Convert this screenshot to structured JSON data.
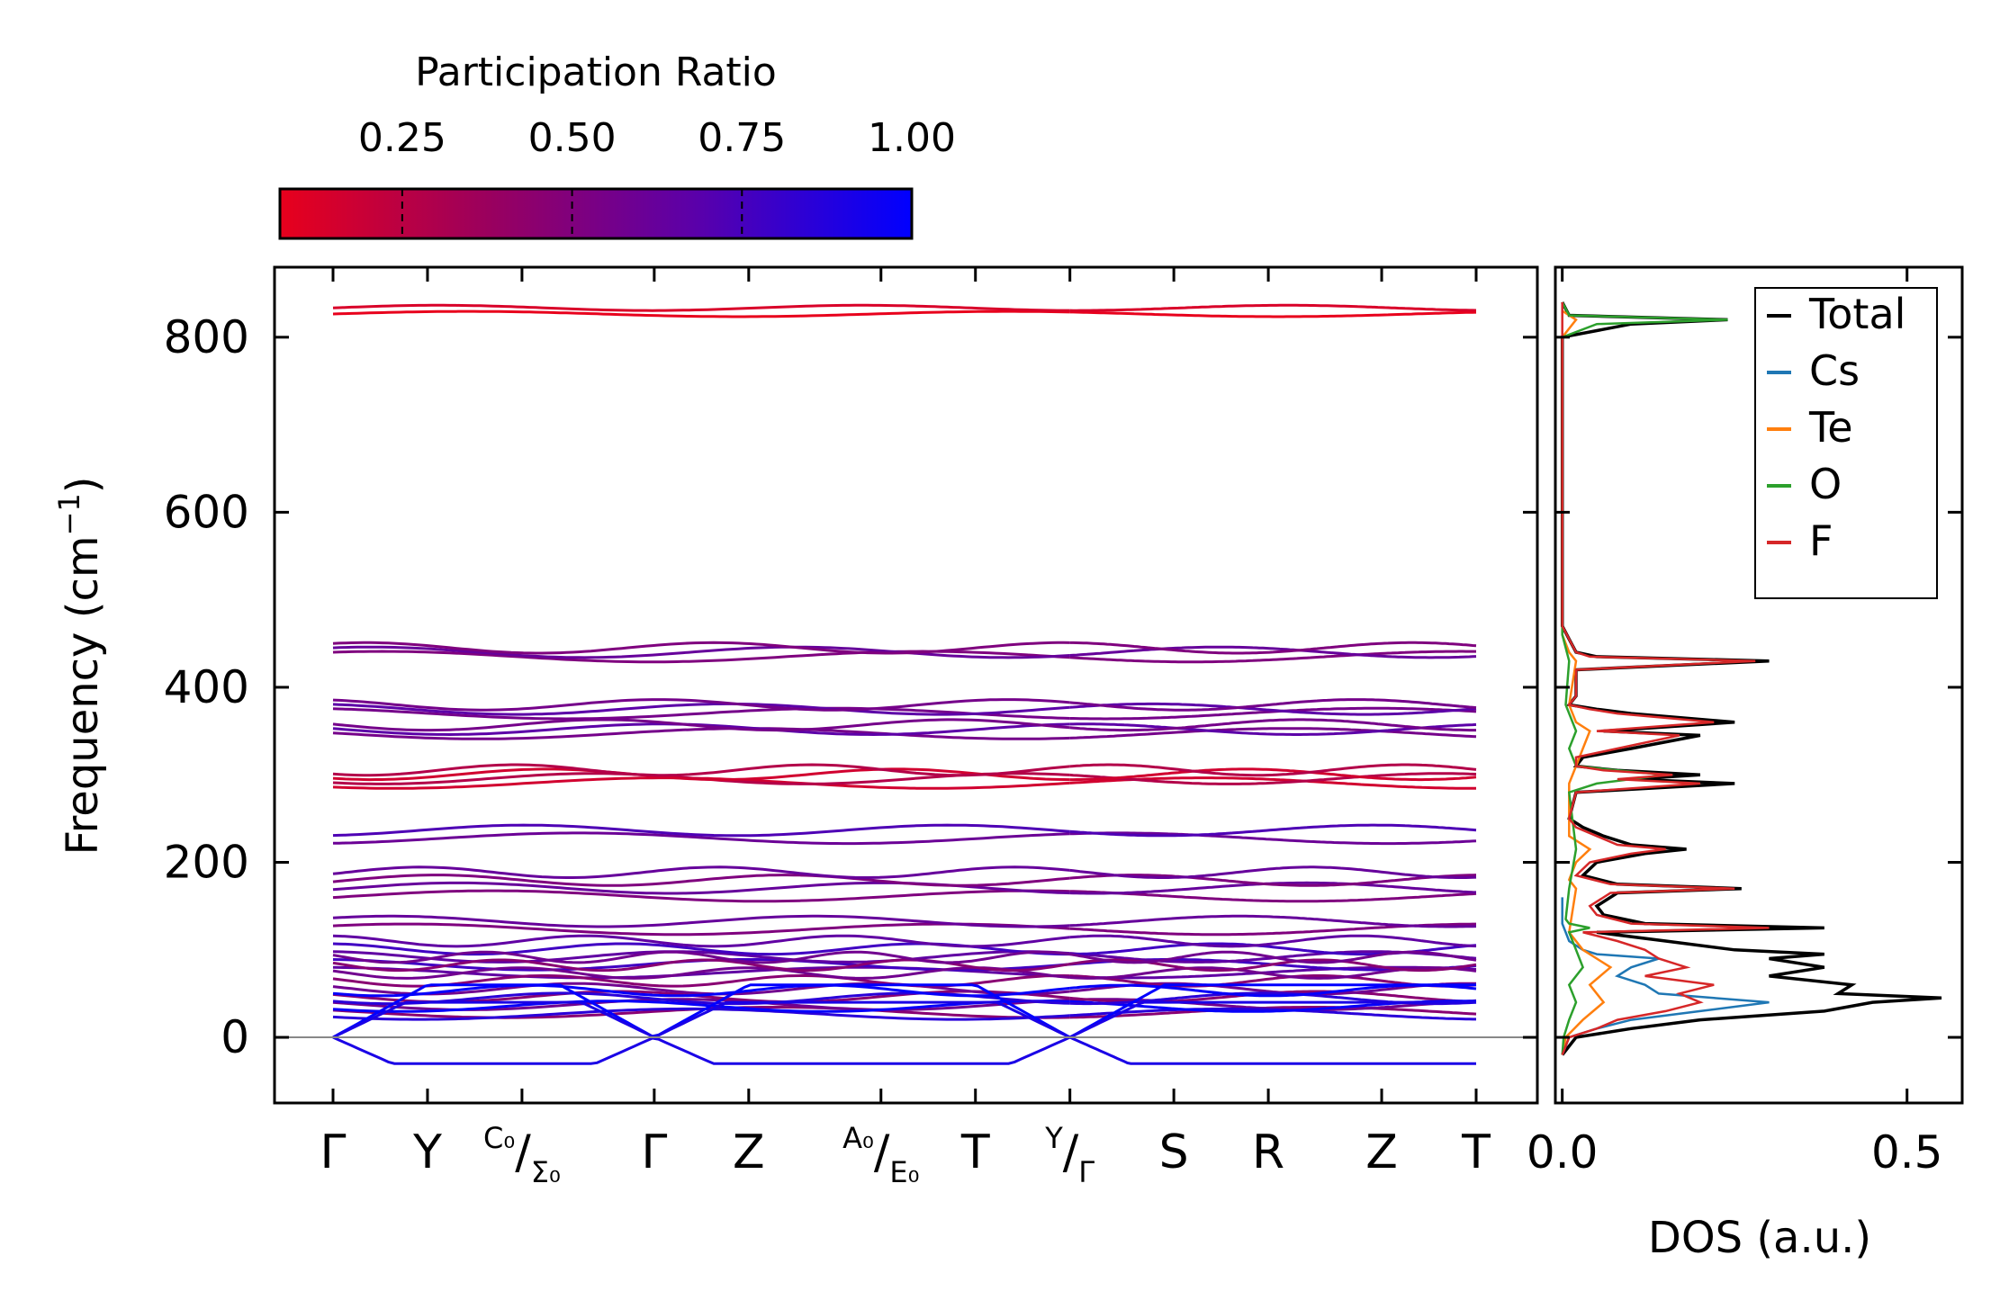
{
  "chart_data": [
    {
      "type": "line",
      "panel": "phonon-band-structure",
      "ylabel": "Frequency (cm",
      "ylabel_sup": "−1",
      "ylabel_close": ")",
      "ylim": [
        -75,
        880
      ],
      "yticks": [
        0,
        200,
        400,
        600,
        800
      ],
      "ytick_labels": [
        "0",
        "200",
        "400",
        "600",
        "800"
      ],
      "kpoints": [
        0,
        1,
        2,
        3.4,
        4.4,
        5.8,
        6.8,
        7.8,
        8.9,
        9.9,
        11.1,
        12.1
      ],
      "segment_breaks": [
        7.8
      ],
      "xtick_labels": [
        {
          "pos": 0,
          "text": "Γ"
        },
        {
          "pos": 1,
          "text": "Y"
        },
        {
          "pos": 2,
          "sup": "C₀",
          "slash": "/",
          "sub": "Σ₀"
        },
        {
          "pos": 3.4,
          "text": "Γ"
        },
        {
          "pos": 4.4,
          "text": "Z"
        },
        {
          "pos": 5.8,
          "sup": "A₀",
          "slash": "/",
          "sub": "E₀"
        },
        {
          "pos": 6.8,
          "text": "T"
        },
        {
          "pos": 7.8,
          "sup": "Y",
          "slash": "/",
          "sub": "Γ"
        },
        {
          "pos": 8.9,
          "text": "S"
        },
        {
          "pos": 9.9,
          "text": "R"
        },
        {
          "pos": 11.1,
          "text": "Z"
        },
        {
          "pos": 12.1,
          "text": "T"
        }
      ],
      "band_groups": [
        {
          "freq": 830,
          "pr": 0.05,
          "n": 2
        },
        {
          "freq": 440,
          "pr": 0.55,
          "n": 3
        },
        {
          "freq": 375,
          "pr": 0.6,
          "n": 3
        },
        {
          "freq": 352,
          "pr": 0.6,
          "n": 3
        },
        {
          "freq": 298,
          "pr": 0.2,
          "n": 4
        },
        {
          "freq": 232,
          "pr": 0.65,
          "n": 2
        },
        {
          "freq": 175,
          "pr": 0.55,
          "n": 4
        },
        {
          "freq": 128,
          "pr": 0.55,
          "n": 2
        },
        {
          "freq": 92,
          "pr": 0.7,
          "n": 5
        },
        {
          "freq": 60,
          "pr": 0.5,
          "n": 8
        },
        {
          "freq": 40,
          "pr": 0.9,
          "n": 4
        },
        {
          "freq": 0,
          "pr": 0.95,
          "n": 3
        }
      ],
      "zero_line": 0,
      "colorbar": {
        "title": "Participation Ratio",
        "ticks": [
          0.25,
          0.5,
          0.75,
          1.0
        ],
        "tick_labels": [
          "0.25",
          "0.50",
          "0.75",
          "1.00"
        ],
        "range": [
          0.07,
          1.0
        ],
        "colors": [
          "#e8001c",
          "#9a005e",
          "#5a00aa",
          "#0000ff"
        ]
      }
    },
    {
      "type": "line",
      "panel": "density-of-states",
      "xlabel": "DOS (a.u.)",
      "xlim": [
        -0.01,
        0.58
      ],
      "xticks": [
        0.0,
        0.5
      ],
      "xtick_labels": [
        "0.0",
        "0.5"
      ],
      "ylim": [
        -75,
        880
      ],
      "series": [
        {
          "name": "Total",
          "color": "#000000",
          "freq": [
            -20,
            0,
            10,
            20,
            30,
            40,
            45,
            50,
            60,
            70,
            80,
            90,
            95,
            100,
            110,
            120,
            125,
            130,
            140,
            150,
            165,
            170,
            175,
            185,
            200,
            210,
            215,
            220,
            230,
            240,
            250,
            280,
            290,
            295,
            300,
            305,
            310,
            320,
            330,
            345,
            350,
            360,
            370,
            375,
            380,
            390,
            420,
            430,
            435,
            440,
            455,
            470,
            800,
            815,
            820,
            825,
            840
          ],
          "values": [
            0,
            0.02,
            0.1,
            0.2,
            0.38,
            0.45,
            0.55,
            0.4,
            0.42,
            0.3,
            0.38,
            0.3,
            0.38,
            0.25,
            0.15,
            0.05,
            0.38,
            0.12,
            0.06,
            0.05,
            0.08,
            0.26,
            0.08,
            0.03,
            0.05,
            0.12,
            0.18,
            0.1,
            0.06,
            0.03,
            0.01,
            0.02,
            0.25,
            0.1,
            0.2,
            0.08,
            0.02,
            0.03,
            0.1,
            0.2,
            0.06,
            0.25,
            0.1,
            0.05,
            0.01,
            0.02,
            0.02,
            0.3,
            0.05,
            0.02,
            0.01,
            0,
            0,
            0.1,
            0.24,
            0.01,
            0
          ]
        },
        {
          "name": "Cs",
          "color": "#1f77b4",
          "freq": [
            -20,
            0,
            10,
            20,
            30,
            40,
            45,
            50,
            60,
            70,
            80,
            90,
            95,
            100,
            110,
            120,
            130,
            140,
            160
          ],
          "values": [
            0,
            0.01,
            0.05,
            0.1,
            0.2,
            0.3,
            0.22,
            0.14,
            0.12,
            0.08,
            0.1,
            0.14,
            0.05,
            0.03,
            0.01,
            0.005,
            0,
            0,
            0
          ]
        },
        {
          "name": "Te",
          "color": "#ff7f0e",
          "freq": [
            -20,
            0,
            20,
            40,
            60,
            80,
            100,
            120,
            170,
            180,
            200,
            215,
            230,
            290,
            310,
            330,
            350,
            360,
            380,
            430,
            440,
            460,
            800,
            820,
            830
          ],
          "values": [
            0,
            0.005,
            0.03,
            0.06,
            0.04,
            0.07,
            0.03,
            0.01,
            0.02,
            0.01,
            0.02,
            0.04,
            0.01,
            0.01,
            0.02,
            0.03,
            0.04,
            0.02,
            0.01,
            0.02,
            0.01,
            0,
            0,
            0.02,
            0
          ]
        },
        {
          "name": "O",
          "color": "#2ca02c",
          "freq": [
            -20,
            0,
            20,
            40,
            60,
            80,
            100,
            120,
            125,
            130,
            135,
            170,
            215,
            280,
            290,
            300,
            305,
            310,
            330,
            350,
            380,
            430,
            460,
            800,
            815,
            820,
            825,
            840
          ],
          "values": [
            0,
            0.002,
            0.01,
            0.02,
            0.01,
            0.03,
            0.02,
            0.01,
            0.04,
            0.01,
            0.005,
            0.01,
            0.02,
            0.01,
            0.05,
            0.15,
            0.08,
            0.02,
            0.01,
            0.02,
            0.005,
            0.01,
            0,
            0,
            0.05,
            0.24,
            0.01,
            0
          ]
        },
        {
          "name": "F",
          "color": "#d62728",
          "freq": [
            -20,
            0,
            10,
            20,
            30,
            40,
            50,
            60,
            70,
            80,
            90,
            100,
            110,
            120,
            125,
            130,
            140,
            150,
            165,
            170,
            175,
            185,
            200,
            210,
            215,
            220,
            230,
            240,
            250,
            280,
            290,
            295,
            300,
            305,
            310,
            320,
            330,
            345,
            350,
            360,
            370,
            375,
            380,
            390,
            420,
            430,
            435,
            440,
            455,
            470,
            820,
            840
          ],
          "values": [
            0,
            0.01,
            0.05,
            0.08,
            0.15,
            0.2,
            0.17,
            0.22,
            0.12,
            0.18,
            0.14,
            0.12,
            0.08,
            0.03,
            0.3,
            0.1,
            0.05,
            0.04,
            0.07,
            0.25,
            0.07,
            0.02,
            0.04,
            0.1,
            0.15,
            0.08,
            0.05,
            0.02,
            0.01,
            0.02,
            0.2,
            0.08,
            0.16,
            0.06,
            0.02,
            0.02,
            0.08,
            0.17,
            0.05,
            0.22,
            0.08,
            0.04,
            0.01,
            0.02,
            0.02,
            0.28,
            0.04,
            0.02,
            0.01,
            0,
            0,
            0
          ]
        }
      ],
      "legend": {
        "placement": "top-right",
        "entries": [
          "Total",
          "Cs",
          "Te",
          "O",
          "F"
        ]
      }
    }
  ]
}
